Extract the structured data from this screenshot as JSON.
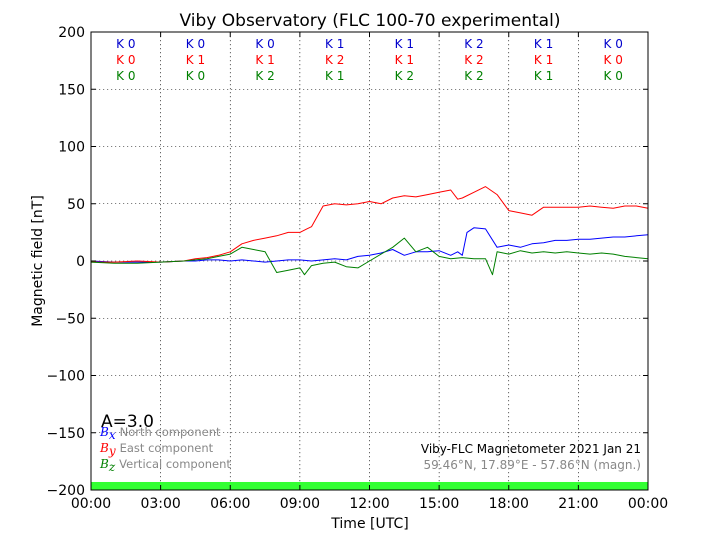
{
  "chart_data": {
    "type": "line",
    "title": "Viby Observatory (FLC 100-70 experimental)",
    "xlabel": "Time [UTC]",
    "ylabel": "Magnetic field [nT]",
    "xlim": [
      0,
      24
    ],
    "ylim": [
      -200,
      200
    ],
    "x_ticks": [
      0,
      3,
      6,
      9,
      12,
      15,
      18,
      21,
      24
    ],
    "x_tick_labels": [
      "00:00",
      "03:00",
      "06:00",
      "09:00",
      "12:00",
      "15:00",
      "18:00",
      "21:00",
      "00:00"
    ],
    "y_ticks": [
      200,
      150,
      100,
      50,
      0,
      -50,
      -100,
      -150,
      -200
    ],
    "y_tick_labels": [
      "200",
      "150",
      "100",
      "50",
      "0",
      "−50",
      "−100",
      "−150",
      "−200"
    ],
    "grid": true,
    "legend_position": "bottom-left",
    "series": [
      {
        "name": "North component",
        "symbol": "B",
        "subscript": "x",
        "color": "#0000ff",
        "x": [
          0,
          1,
          2,
          3,
          4,
          4.5,
          5,
          5.5,
          6,
          6.5,
          7,
          7.5,
          8,
          8.5,
          9,
          9.5,
          10,
          10.5,
          11,
          11.5,
          12,
          12.5,
          13,
          13.5,
          14,
          14.5,
          15,
          15.5,
          15.8,
          16,
          16.2,
          16.5,
          17,
          17.5,
          18,
          18.5,
          19,
          19.5,
          20,
          20.5,
          21,
          21.5,
          22,
          22.5,
          23,
          23.5,
          24
        ],
        "y": [
          0,
          -1,
          -1,
          -1,
          0,
          0,
          1,
          1,
          0,
          1,
          0,
          -1,
          0,
          1,
          1,
          0,
          1,
          2,
          1,
          4,
          5,
          7,
          10,
          5,
          8,
          8,
          9,
          5,
          8,
          5,
          25,
          29,
          28,
          12,
          14,
          12,
          15,
          16,
          18,
          18,
          19,
          19,
          20,
          21,
          21,
          22,
          23
        ]
      },
      {
        "name": "East component",
        "symbol": "B",
        "subscript": "y",
        "color": "#ff0000",
        "x": [
          0,
          1,
          2,
          3,
          4,
          4.5,
          5,
          5.5,
          6,
          6.5,
          7,
          7.5,
          8,
          8.5,
          9,
          9.3,
          9.5,
          10,
          10.5,
          11,
          11.5,
          12,
          12.5,
          13,
          13.5,
          14,
          14.5,
          15,
          15.5,
          15.8,
          16,
          16.5,
          17,
          17.5,
          18,
          18.5,
          19,
          19.5,
          20,
          20.5,
          21,
          21.5,
          22,
          22.5,
          23,
          23.5,
          24
        ],
        "y": [
          -1,
          -1,
          0,
          -1,
          0,
          2,
          3,
          5,
          8,
          15,
          18,
          20,
          22,
          25,
          25,
          28,
          30,
          48,
          50,
          49,
          50,
          52,
          50,
          55,
          57,
          56,
          58,
          60,
          62,
          54,
          55,
          60,
          65,
          58,
          44,
          42,
          40,
          47,
          47,
          47,
          47,
          48,
          47,
          46,
          48,
          48,
          46
        ]
      },
      {
        "name": "Vertical component",
        "symbol": "B",
        "subscript": "z",
        "color": "#008000",
        "x": [
          0,
          1,
          2,
          3,
          4,
          4.5,
          5,
          5.5,
          6,
          6.5,
          7,
          7.5,
          8,
          8.5,
          9,
          9.2,
          9.5,
          10,
          10.5,
          11,
          11.5,
          12,
          12.5,
          13,
          13.5,
          14,
          14.5,
          15,
          15.5,
          16,
          16.5,
          17,
          17.3,
          17.5,
          18,
          18.5,
          19,
          19.5,
          20,
          20.5,
          21,
          21.5,
          22,
          22.5,
          23,
          23.5,
          24
        ],
        "y": [
          -1,
          -2,
          -2,
          -1,
          0,
          1,
          2,
          4,
          6,
          12,
          10,
          8,
          -10,
          -8,
          -6,
          -12,
          -4,
          -2,
          -1,
          -5,
          -6,
          0,
          6,
          12,
          20,
          8,
          12,
          4,
          2,
          3,
          2,
          2,
          -12,
          8,
          6,
          9,
          7,
          8,
          7,
          8,
          7,
          6,
          7,
          6,
          4,
          3,
          2
        ]
      }
    ],
    "k_index": {
      "rows": [
        {
          "color": "#0000cc",
          "labels": [
            "K 0",
            "K 0",
            "K 0",
            "K 1",
            "K 1",
            "K 2",
            "K 1",
            "K 0"
          ]
        },
        {
          "color": "#ff0000",
          "labels": [
            "K 0",
            "K 1",
            "K 1",
            "K 2",
            "K 1",
            "K 2",
            "K 1",
            "K 0"
          ]
        },
        {
          "color": "#008000",
          "labels": [
            "K 0",
            "K 0",
            "K 2",
            "K 1",
            "K 2",
            "K 2",
            "K 1",
            "K 0"
          ]
        }
      ]
    },
    "a_index": "A=3.0",
    "annotations": [
      "Viby-FLC Magnetometer 2021 Jan 21",
      "59.46°N, 17.89°E - 57.86°N (magn.)"
    ],
    "status_bar": {
      "color": "#33ff33"
    }
  }
}
